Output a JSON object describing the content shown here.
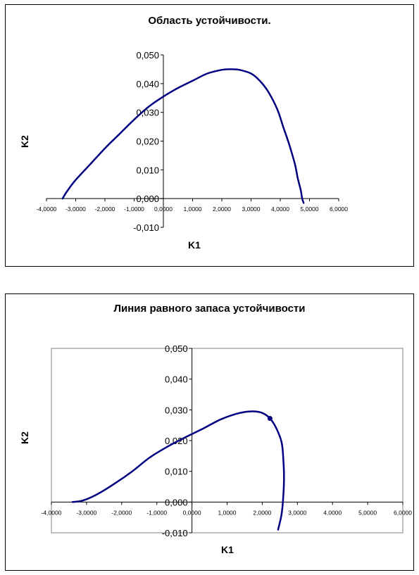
{
  "chart_data": [
    {
      "type": "line",
      "title": "Область устойчивости.",
      "xlabel": "K1",
      "ylabel": "K2",
      "xlim": [
        -4,
        6
      ],
      "ylim": [
        -0.01,
        0.05
      ],
      "x_ticks": [
        "-4,0000",
        "-3,0000",
        "-2,0000",
        "-1,0000",
        "0,0000",
        "1,0000",
        "2,0000",
        "3,0000",
        "4,0000",
        "5,0000",
        "6,0000"
      ],
      "y_ticks": [
        "-0,010",
        "0,000",
        "0,010",
        "0,020",
        "0,030",
        "0,040",
        "0,050"
      ],
      "grid": false,
      "plot_frame": false,
      "line_color": "#000080",
      "series": [
        {
          "x": [
            -3.45,
            -3.3,
            -3.0,
            -2.5,
            -2.0,
            -1.5,
            -1.0,
            -0.5,
            0.0,
            0.5,
            1.0,
            1.5,
            2.0,
            2.3,
            2.6,
            3.0,
            3.3,
            3.6,
            3.9,
            4.1,
            4.3,
            4.5,
            4.6,
            4.7,
            4.75,
            4.8
          ],
          "y": [
            0.0,
            0.0025,
            0.0065,
            0.012,
            0.0175,
            0.0225,
            0.0275,
            0.032,
            0.0355,
            0.0385,
            0.041,
            0.0435,
            0.0448,
            0.045,
            0.0448,
            0.0435,
            0.041,
            0.037,
            0.031,
            0.025,
            0.019,
            0.012,
            0.007,
            0.003,
            0.0,
            -0.0015
          ]
        }
      ]
    },
    {
      "type": "line",
      "title": "Линия равного запаса устойчивости",
      "xlabel": "K1",
      "ylabel": "K2",
      "xlim": [
        -4,
        6
      ],
      "ylim": [
        -0.01,
        0.05
      ],
      "x_ticks": [
        "-4,0000",
        "-3,0000",
        "-2,0000",
        "-1,0000",
        "0,0000",
        "1,0000",
        "2,0000",
        "3,0000",
        "4,0000",
        "5,0000",
        "6,0000"
      ],
      "y_ticks": [
        "-0,010",
        "0,000",
        "0,010",
        "0,020",
        "0,030",
        "0,040",
        "0,050"
      ],
      "grid": false,
      "plot_frame": true,
      "line_color": "#000080",
      "series": [
        {
          "x": [
            -3.4,
            -3.1,
            -2.7,
            -2.2,
            -1.7,
            -1.2,
            -0.7,
            -0.2,
            0.3,
            0.8,
            1.2,
            1.5,
            1.75,
            2.0,
            2.22,
            2.4,
            2.55,
            2.6,
            2.62,
            2.6,
            2.55,
            2.45
          ],
          "y": [
            0.0,
            0.0005,
            0.0025,
            0.006,
            0.01,
            0.0145,
            0.018,
            0.021,
            0.0238,
            0.0268,
            0.0285,
            0.0293,
            0.0295,
            0.029,
            0.0272,
            0.024,
            0.0195,
            0.014,
            0.008,
            0.002,
            -0.004,
            -0.009
          ]
        }
      ],
      "marker": {
        "x": 2.22,
        "y": 0.0272
      }
    }
  ]
}
